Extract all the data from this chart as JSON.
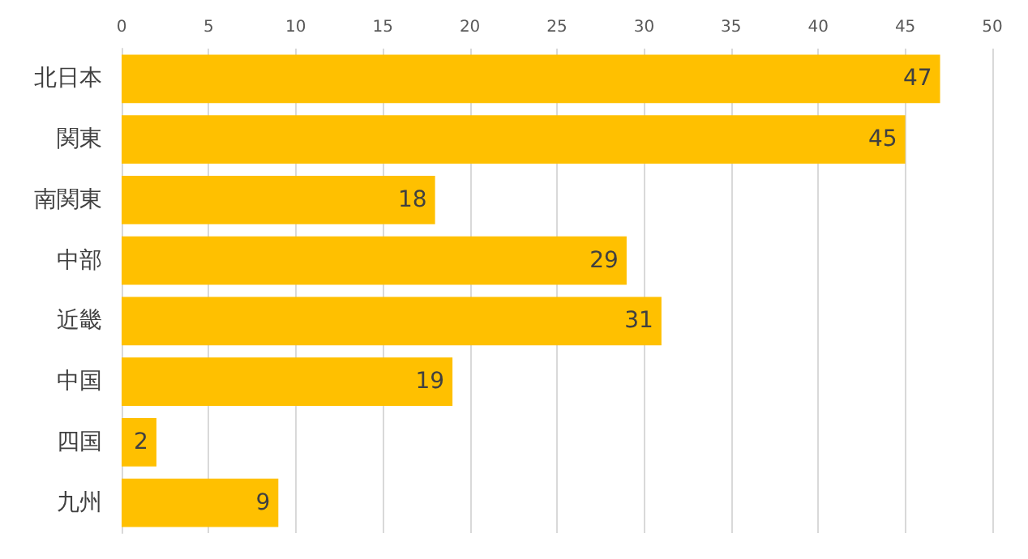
{
  "chart_data": {
    "type": "bar",
    "orientation": "horizontal",
    "categories": [
      "北日本",
      "関東",
      "南関東",
      "中部",
      "近畿",
      "中国",
      "四国",
      "九州"
    ],
    "values": [
      47,
      45,
      18,
      29,
      31,
      19,
      2,
      9
    ],
    "color": "#ffc000",
    "xlim": [
      0,
      50
    ],
    "xticks": [
      0,
      5,
      10,
      15,
      20,
      25,
      30,
      35,
      40,
      45,
      50
    ],
    "grid": "x",
    "data_labels": true
  }
}
